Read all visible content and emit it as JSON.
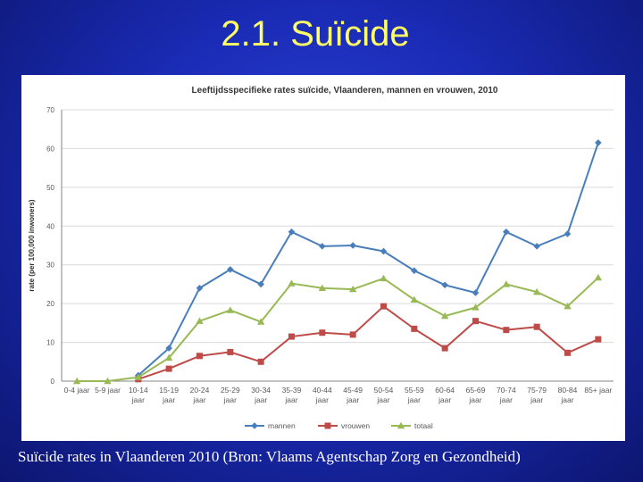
{
  "slide": {
    "title": "2.1. Suïcide",
    "caption": "Suïcide rates in Vlaanderen 2010 (Bron: Vlaams Agentschap Zorg en Gezondheid)"
  },
  "chart_data": {
    "type": "line",
    "title": "Leeftijdsspecifieke rates suïcide, Vlaanderen, mannen en vrouwen, 2010",
    "ylabel": "rate (per 100,000 inwoners)",
    "xlabel": "",
    "ylim": [
      0,
      70
    ],
    "yticks": [
      0,
      10,
      20,
      30,
      40,
      50,
      60,
      70
    ],
    "grid": true,
    "legend_position": "bottom",
    "categories": [
      [
        "0-4 jaar"
      ],
      [
        "5-9 jaar"
      ],
      [
        "10-14",
        "jaar"
      ],
      [
        "15-19",
        "jaar"
      ],
      [
        "20-24",
        "jaar"
      ],
      [
        "25-29",
        "jaar"
      ],
      [
        "30-34",
        "jaar"
      ],
      [
        "35-39",
        "jaar"
      ],
      [
        "40-44",
        "jaar"
      ],
      [
        "45-49",
        "jaar"
      ],
      [
        "50-54",
        "jaar"
      ],
      [
        "55-59",
        "jaar"
      ],
      [
        "60-64",
        "jaar"
      ],
      [
        "65-69",
        "jaar"
      ],
      [
        "70-74",
        "jaar"
      ],
      [
        "75-79",
        "jaar"
      ],
      [
        "80-84",
        "jaar"
      ],
      [
        "85+ jaar"
      ]
    ],
    "series": [
      {
        "name": "mannen",
        "color": "#4a7ebb",
        "marker": "diamond",
        "values": [
          null,
          null,
          1.5,
          8.5,
          24,
          28.8,
          25,
          38.5,
          34.8,
          35,
          33.5,
          28.5,
          24.8,
          22.8,
          38.5,
          34.8,
          38,
          61.5
        ]
      },
      {
        "name": "vrouwen",
        "color": "#be4b48",
        "marker": "square",
        "values": [
          null,
          null,
          0.5,
          3.2,
          6.5,
          7.5,
          5,
          11.5,
          12.5,
          12,
          19.3,
          13.5,
          8.5,
          15.5,
          13.2,
          14,
          7.3,
          10.8
        ]
      },
      {
        "name": "totaal",
        "color": "#98b954",
        "marker": "triangle",
        "values": [
          0,
          0,
          1,
          6,
          15.5,
          18.3,
          15.3,
          25.2,
          24,
          23.7,
          26.5,
          21,
          16.8,
          19,
          25,
          23,
          19.3,
          26.7
        ]
      }
    ]
  }
}
